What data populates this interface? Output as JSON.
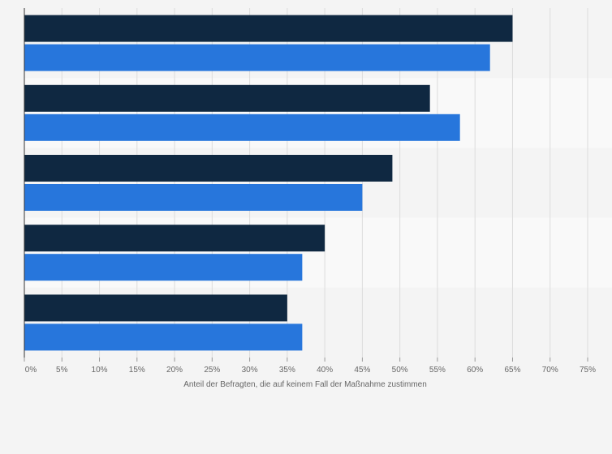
{
  "chart_data": {
    "type": "bar",
    "orientation": "horizontal",
    "categories": [
      "",
      "",
      "",
      "",
      ""
    ],
    "series": [
      {
        "color": "#0f2841",
        "values": [
          65,
          54,
          49,
          40,
          35
        ]
      },
      {
        "color": "#2776dc",
        "values": [
          62,
          58,
          45,
          37,
          37
        ]
      }
    ],
    "xlabel": "Anteil der Befragten, die auf keinem Fall der Maßnahme zustimmen",
    "xlim": [
      0,
      75
    ],
    "x_ticks": [
      0,
      5,
      10,
      15,
      20,
      25,
      30,
      35,
      40,
      45,
      50,
      55,
      60,
      65,
      70,
      75
    ],
    "x_tick_labels": [
      "0%",
      "5%",
      "10%",
      "15%",
      "20%",
      "25%",
      "30%",
      "35%",
      "40%",
      "45%",
      "50%",
      "55%",
      "60%",
      "65%",
      "70%",
      "75%"
    ],
    "grid": true,
    "alternating_row_bands": true
  }
}
